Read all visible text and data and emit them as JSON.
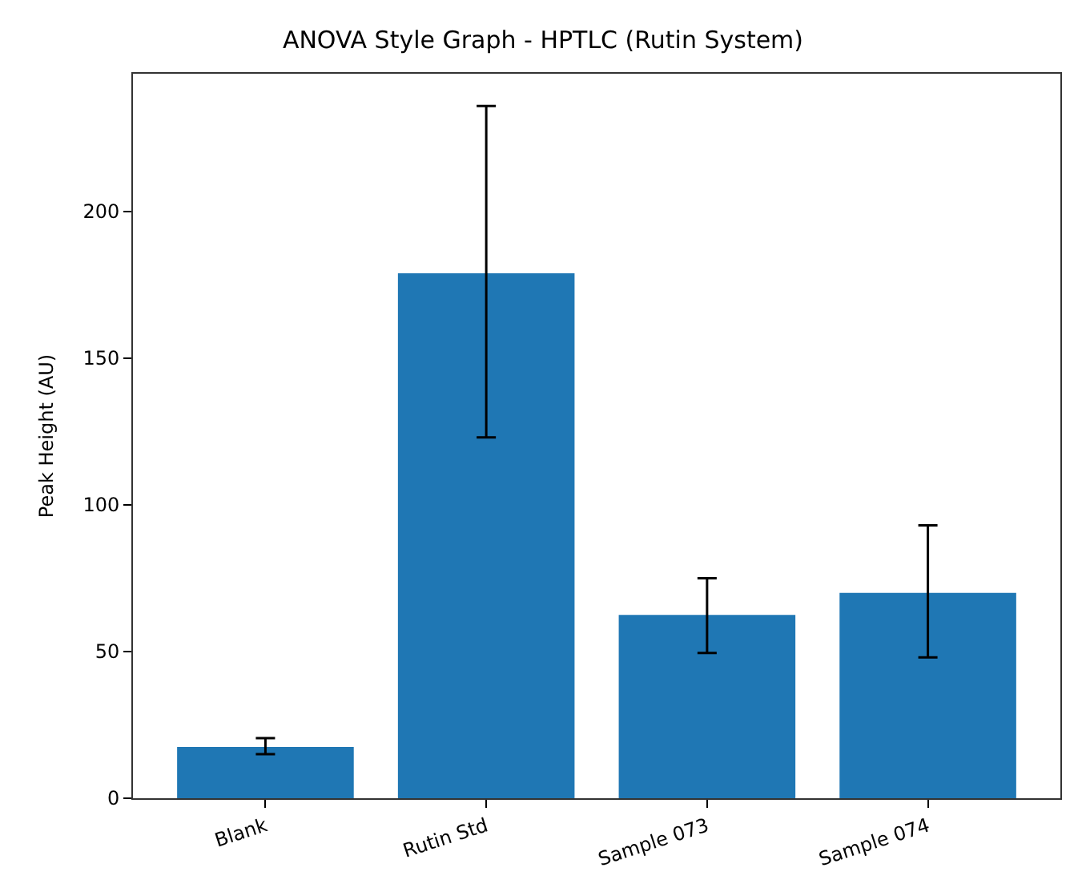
{
  "chart_data": {
    "type": "bar",
    "title": "ANOVA Style Graph - HPTLC (Rutin System)",
    "ylabel": "Peak Height (AU)",
    "categories": [
      "Blank",
      "Rutin Std",
      "Sample 073",
      "Sample 074"
    ],
    "values": [
      17.5,
      179,
      62.5,
      70
    ],
    "errors": [
      [
        15,
        20.5
      ],
      [
        123,
        236
      ],
      [
        49.5,
        75
      ],
      [
        48,
        93
      ]
    ],
    "color": "#1f77b4",
    "ylim": [
      0,
      247
    ],
    "yticks": [
      0,
      50,
      100,
      150,
      200
    ],
    "grid": false,
    "legend": false
  }
}
